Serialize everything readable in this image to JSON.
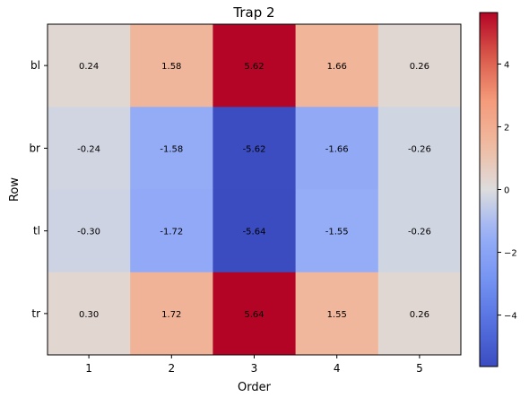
{
  "chart_data": {
    "type": "heatmap",
    "title": "Trap 2",
    "xlabel": "Order",
    "ylabel": "Row",
    "x_categories": [
      "1",
      "2",
      "3",
      "4",
      "5"
    ],
    "y_categories": [
      "bl",
      "br",
      "tl",
      "tr"
    ],
    "values": [
      [
        0.24,
        1.58,
        5.62,
        1.66,
        0.26
      ],
      [
        -0.24,
        -1.58,
        -5.62,
        -1.66,
        -0.26
      ],
      [
        -0.3,
        -1.72,
        -5.64,
        -1.55,
        -0.26
      ],
      [
        0.3,
        1.72,
        5.64,
        1.55,
        0.26
      ]
    ],
    "value_labels": [
      [
        "0.24",
        "1.58",
        "5.62",
        "1.66",
        "0.26"
      ],
      [
        "-0.24",
        "-1.58",
        "-5.62",
        "-1.66",
        "-0.26"
      ],
      [
        "-0.30",
        "-1.72",
        "-5.64",
        "-1.55",
        "-0.26"
      ],
      [
        "0.30",
        "1.72",
        "5.64",
        "1.55",
        "0.26"
      ]
    ],
    "colormap": "coolwarm",
    "color_range": [
      -5.64,
      5.64
    ],
    "colorbar_ticks": [
      -4,
      -2,
      0,
      2,
      4
    ],
    "colorbar_tick_labels": [
      "−4",
      "−2",
      "0",
      "2",
      "4"
    ],
    "grid": false,
    "legend": "none"
  }
}
